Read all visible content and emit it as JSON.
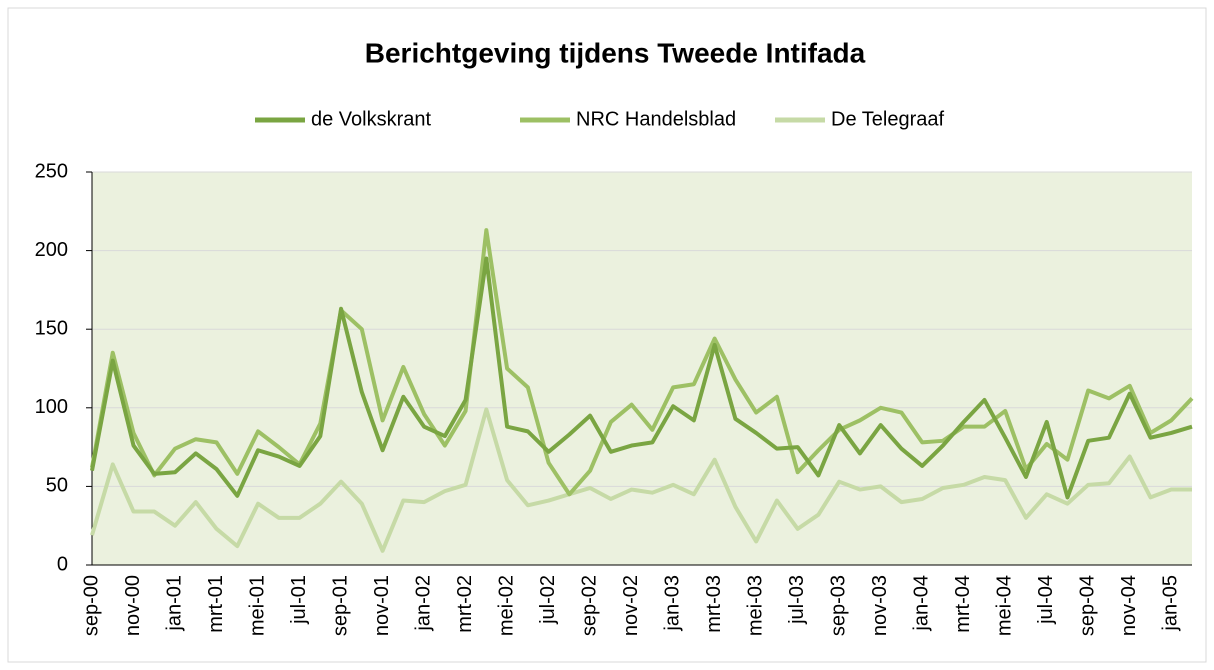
{
  "chart_data": {
    "type": "line",
    "title": "Berichtgeving tijdens Tweede Intifada",
    "categories": [
      "sep-00",
      null,
      "nov-00",
      null,
      "jan-01",
      null,
      "mrt-01",
      null,
      "mei-01",
      null,
      "jul-01",
      null,
      "sep-01",
      null,
      "nov-01",
      null,
      "jan-02",
      null,
      "mrt-02",
      null,
      "mei-02",
      null,
      "jul-02",
      null,
      "sep-02",
      null,
      "nov-02",
      null,
      "jan-03",
      null,
      "mrt-03",
      null,
      "mei-03",
      null,
      "jul-03",
      null,
      "sep-03",
      null,
      "nov-03",
      null,
      "jan-04",
      null,
      "mrt-04",
      null,
      "mei-04",
      null,
      "jul-04",
      null,
      "sep-04",
      null,
      "nov-04",
      null,
      "jan-05",
      null
    ],
    "series": [
      {
        "name": "de Volkskrant",
        "color": "#7aa542",
        "values": [
          60,
          130,
          76,
          58,
          59,
          71,
          61,
          44,
          73,
          69,
          63,
          82,
          163,
          110,
          73,
          107,
          88,
          82,
          105,
          195,
          88,
          85,
          72,
          83,
          95,
          72,
          76,
          78,
          101,
          92,
          140,
          93,
          84,
          74,
          75,
          57,
          89,
          71,
          89,
          74,
          63,
          76,
          91,
          105,
          81,
          56,
          91,
          43,
          79,
          81,
          109,
          81,
          84,
          88
        ]
      },
      {
        "name": "NRC Handelsblad",
        "color": "#9dc064",
        "values": [
          62,
          135,
          84,
          57,
          74,
          80,
          78,
          58,
          85,
          75,
          64,
          90,
          162,
          150,
          92,
          126,
          96,
          76,
          98,
          213,
          125,
          113,
          65,
          45,
          60,
          91,
          102,
          86,
          113,
          115,
          144,
          118,
          97,
          107,
          59,
          73,
          86,
          92,
          100,
          97,
          78,
          79,
          88,
          88,
          98,
          61,
          77,
          67,
          111,
          106,
          114,
          84,
          92,
          106
        ]
      },
      {
        "name": "De Telegraaf",
        "color": "#c6daa6",
        "values": [
          19,
          64,
          34,
          34,
          25,
          40,
          23,
          12,
          39,
          30,
          30,
          39,
          53,
          39,
          9,
          41,
          40,
          47,
          51,
          99,
          54,
          38,
          41,
          45,
          49,
          42,
          48,
          46,
          51,
          45,
          67,
          37,
          15,
          41,
          23,
          32,
          53,
          48,
          50,
          40,
          42,
          49,
          51,
          56,
          54,
          30,
          45,
          39,
          51,
          52,
          69,
          43,
          48,
          48
        ]
      }
    ],
    "ylim": [
      0,
      250
    ],
    "yticks": [
      0,
      50,
      100,
      150,
      200,
      250
    ],
    "grid": true,
    "legend": "top",
    "plot_background": "#ebf1de"
  }
}
